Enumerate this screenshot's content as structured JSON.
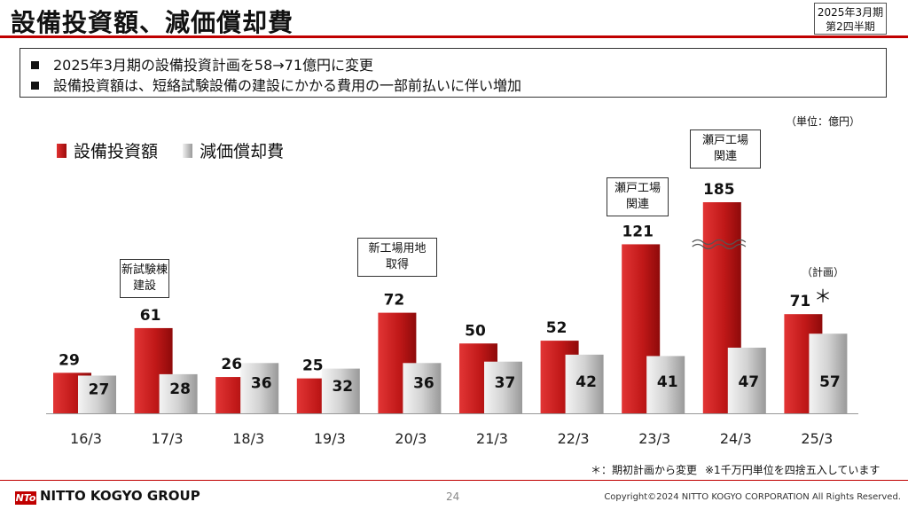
{
  "title": "設備投資額、減価償却費",
  "period_badge": [
    "2025年3月期",
    "第2四半期"
  ],
  "summary": [
    "2025年3月期の設備投資計画を58→71億円に変更",
    "設備投資額は、短絡試験設備の建設にかかる費用の一部前払いに伴い増加"
  ],
  "unit_label": "（単位：億円）",
  "plan_label": "（計画）",
  "asterisk": "＊",
  "callouts": [
    {
      "lines": [
        "新試験棟",
        "建設"
      ]
    },
    {
      "lines": [
        "新工場用地",
        "取得"
      ]
    },
    {
      "lines": [
        "瀬戸工場",
        "関連"
      ]
    },
    {
      "lines": [
        "瀬戸工場",
        "関連"
      ]
    }
  ],
  "footnotes": [
    "＊：期初計画から変更",
    "※1千万円単位を四捨五入しています"
  ],
  "footer": {
    "logo_mark": "NTo",
    "logo_text": "NITTO KOGYO GROUP",
    "page": "24",
    "copyright": "Copyright©2024 NITTO KOGYO CORPORATION All Rights Reserved."
  },
  "colors": {
    "accent": "#c00000",
    "capex": "#c41a1a",
    "depreciation": "#b5b5b5"
  },
  "chart_data": {
    "type": "bar",
    "categories": [
      "16/3",
      "17/3",
      "18/3",
      "19/3",
      "20/3",
      "21/3",
      "22/3",
      "23/3",
      "24/3",
      "25/3"
    ],
    "series": [
      {
        "name": "設備投資額",
        "values": [
          29,
          61,
          26,
          25,
          72,
          50,
          52,
          121,
          185,
          71
        ]
      },
      {
        "name": "減価償却費",
        "values": [
          27,
          28,
          36,
          32,
          36,
          37,
          42,
          41,
          47,
          57
        ]
      }
    ],
    "axis_break": {
      "category": "24/3",
      "series": "設備投資額"
    },
    "legend_position": "top-left",
    "grid": false
  }
}
